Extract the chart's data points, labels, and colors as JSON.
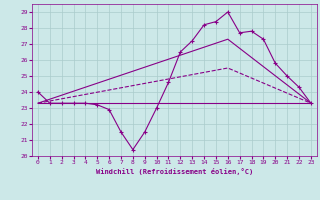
{
  "xlabel": "Windchill (Refroidissement éolien,°C)",
  "bg_color": "#cce8e8",
  "grid_color": "#aacccc",
  "line_color": "#880088",
  "ylim": [
    20,
    29.5
  ],
  "xlim": [
    -0.5,
    23.5
  ],
  "yticks": [
    20,
    21,
    22,
    23,
    24,
    25,
    26,
    27,
    28,
    29
  ],
  "xticks": [
    0,
    1,
    2,
    3,
    4,
    5,
    6,
    7,
    8,
    9,
    10,
    11,
    12,
    13,
    14,
    15,
    16,
    17,
    18,
    19,
    20,
    21,
    22,
    23
  ],
  "line1_x": [
    0,
    1,
    2,
    3,
    4,
    5,
    6,
    7,
    8,
    9,
    10,
    11,
    12,
    13,
    14,
    15,
    16,
    17,
    18,
    19,
    20,
    21,
    22,
    23
  ],
  "line1_y": [
    24.0,
    23.3,
    23.3,
    23.3,
    23.3,
    23.2,
    22.9,
    21.5,
    20.4,
    21.5,
    23.0,
    24.6,
    26.5,
    27.2,
    28.2,
    28.4,
    29.0,
    27.7,
    27.8,
    27.3,
    25.8,
    25.0,
    24.3,
    23.3
  ],
  "line2_x": [
    0,
    23
  ],
  "line2_y": [
    23.3,
    23.3
  ],
  "line3_x": [
    0,
    16,
    23
  ],
  "line3_y": [
    23.3,
    27.3,
    23.3
  ],
  "line4_x": [
    0,
    16,
    23
  ],
  "line4_y": [
    23.3,
    25.5,
    23.3
  ]
}
